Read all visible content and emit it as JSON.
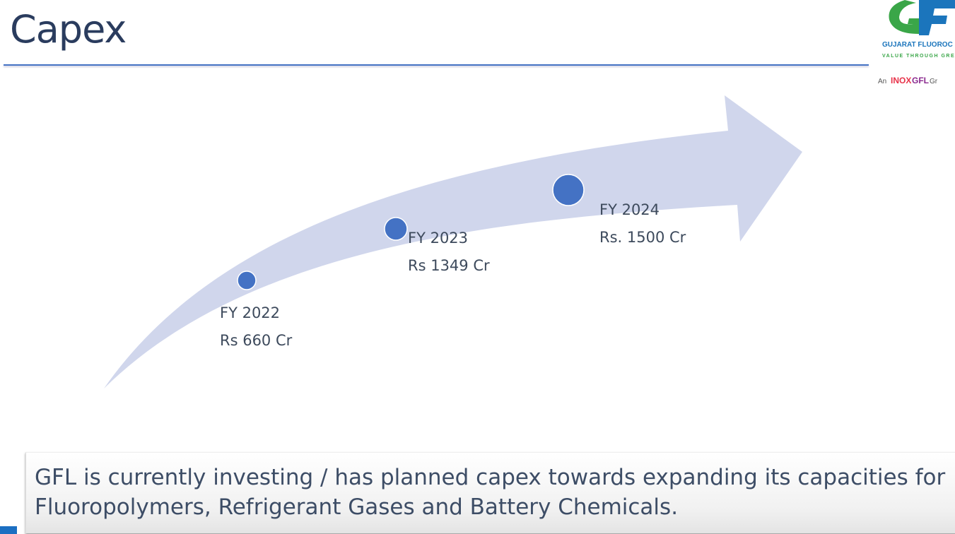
{
  "slide": {
    "title": "Capex"
  },
  "logo": {
    "mark": "GFL",
    "company": "GUJARAT FLUOROCHEMICALS",
    "tagline": "VALUE THROUGH GREEN",
    "group": "An INOXGFL Group",
    "accent": "#1b75bc",
    "green": "#3aa648"
  },
  "timeline": [
    {
      "year": "FY 2022",
      "amount": "Rs 660 Cr"
    },
    {
      "year": "FY 2023",
      "amount": "Rs 1349 Cr"
    },
    {
      "year": "FY 2024",
      "amount": "Rs. 1500 Cr"
    }
  ],
  "summary": {
    "text": "GFL is currently investing / has planned capex towards expanding its capacities for Fluoropolymers, Refrigerant Gases and Battery Chemicals."
  },
  "colors": {
    "arrow": "#d0d6ec",
    "dot": "#4472c4",
    "title": "#2a3c5e"
  }
}
